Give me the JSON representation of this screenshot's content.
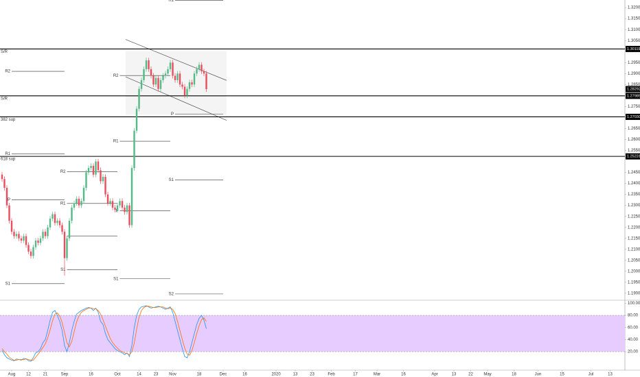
{
  "chart_data": {
    "type": "candlestick",
    "ylim": [
      1.18685,
      1.32347
    ],
    "xlim": [
      -0.857,
      259.14
    ],
    "yticks": [
      {
        "value": 1.19,
        "label": "1.19000"
      },
      {
        "value": 1.195,
        "label": "1.19500"
      },
      {
        "value": 1.2,
        "label": "1.20000"
      },
      {
        "value": 1.205,
        "label": "1.20500"
      },
      {
        "value": 1.21,
        "label": "1.21000"
      },
      {
        "value": 1.215,
        "label": "1.21500"
      },
      {
        "value": 1.22,
        "label": "1.22000"
      },
      {
        "value": 1.225,
        "label": "1.22500"
      },
      {
        "value": 1.23,
        "label": "1.23000"
      },
      {
        "value": 1.235,
        "label": "1.23500"
      },
      {
        "value": 1.24,
        "label": "1.24000"
      },
      {
        "value": 1.245,
        "label": "1.24500"
      },
      {
        "value": 1.255,
        "label": "1.25500"
      },
      {
        "value": 1.26,
        "label": "1.26000"
      },
      {
        "value": 1.265,
        "label": "1.26500"
      },
      {
        "value": 1.275,
        "label": "1.27500"
      },
      {
        "value": 1.285,
        "label": "1.28500"
      },
      {
        "value": 1.29,
        "label": "1.29000"
      },
      {
        "value": 1.295,
        "label": "1.29500"
      },
      {
        "value": 1.305,
        "label": "1.30500"
      },
      {
        "value": 1.31,
        "label": "1.31000"
      },
      {
        "value": 1.315,
        "label": "1.31500"
      },
      {
        "value": 1.32,
        "label": "1.32000"
      }
    ],
    "xticks": [
      {
        "value": 4,
        "label": "Aug"
      },
      {
        "value": 11,
        "label": "12"
      },
      {
        "value": 18,
        "label": "21"
      },
      {
        "value": 26,
        "label": "Sep"
      },
      {
        "value": 37,
        "label": "16"
      },
      {
        "value": 48,
        "label": "Oct"
      },
      {
        "value": 57,
        "label": "14"
      },
      {
        "value": 64,
        "label": "23"
      },
      {
        "value": 71,
        "label": "Nov"
      },
      {
        "value": 82,
        "label": "18"
      },
      {
        "value": 92,
        "label": "Dec"
      },
      {
        "value": 101,
        "label": "16"
      },
      {
        "value": 114,
        "label": "2020"
      },
      {
        "value": 122,
        "label": "13"
      },
      {
        "value": 129,
        "label": "23"
      },
      {
        "value": 137,
        "label": "Feb"
      },
      {
        "value": 147,
        "label": "17"
      },
      {
        "value": 156,
        "label": "Mar"
      },
      {
        "value": 167,
        "label": "16"
      },
      {
        "value": 180,
        "label": "Apr"
      },
      {
        "value": 188,
        "label": "13"
      },
      {
        "value": 195,
        "label": "22"
      },
      {
        "value": 202,
        "label": "May"
      },
      {
        "value": 213,
        "label": "18"
      },
      {
        "value": 223,
        "label": "Jun"
      },
      {
        "value": 233,
        "label": "15"
      },
      {
        "value": 245,
        "label": "Jul"
      },
      {
        "value": 253,
        "label": "13"
      }
    ],
    "colors": {
      "up": "#53b987",
      "down": "#eb4d5c"
    },
    "candles": {
      "open": [
        1.244,
        1.242,
        1.238,
        1.23,
        1.223,
        1.218,
        1.216,
        1.217,
        1.215,
        1.214,
        1.216,
        1.212,
        1.209,
        1.207,
        1.211,
        1.214,
        1.213,
        1.215,
        1.218,
        1.216,
        1.22,
        1.224,
        1.226,
        1.222,
        1.223,
        1.221,
        1.218,
        1.206,
        1.215,
        1.223,
        1.229,
        1.231,
        1.233,
        1.23,
        1.232,
        1.238,
        1.245,
        1.247,
        1.248,
        1.244,
        1.25,
        1.246,
        1.241,
        1.243,
        1.235,
        1.231,
        1.232,
        1.229,
        1.228,
        1.23,
        1.232,
        1.229,
        1.227,
        1.23,
        1.221,
        1.247,
        1.264,
        1.274,
        1.283,
        1.287,
        1.292,
        1.296,
        1.292,
        1.289,
        1.285,
        1.288,
        1.283,
        1.287,
        1.289,
        1.29,
        1.292,
        1.295,
        1.289,
        1.287,
        1.29,
        1.285,
        1.284,
        1.28,
        1.283,
        1.286,
        1.285,
        1.29,
        1.292,
        1.294,
        1.291,
        1.29
      ],
      "high": [
        1.2452,
        1.2432,
        1.2392,
        1.2312,
        1.2242,
        1.2192,
        1.2182,
        1.2182,
        1.2162,
        1.2172,
        1.2172,
        1.2132,
        1.2102,
        1.2122,
        1.2152,
        1.2152,
        1.2162,
        1.2192,
        1.2192,
        1.2212,
        1.2252,
        1.2272,
        1.2272,
        1.2242,
        1.2242,
        1.2222,
        1.2192,
        1.2162,
        1.2242,
        1.2302,
        1.2322,
        1.2342,
        1.2342,
        1.2332,
        1.2392,
        1.2462,
        1.2482,
        1.2492,
        1.2492,
        1.2512,
        1.2512,
        1.2472,
        1.2442,
        1.2442,
        1.2362,
        1.2332,
        1.2332,
        1.2302,
        1.2312,
        1.2332,
        1.2332,
        1.2302,
        1.2312,
        1.2312,
        1.2482,
        1.2652,
        1.2752,
        1.2842,
        1.2882,
        1.2932,
        1.2972,
        1.2972,
        1.2932,
        1.2902,
        1.2892,
        1.2892,
        1.2882,
        1.2902,
        1.2912,
        1.2932,
        1.2962,
        1.2962,
        1.2902,
        1.2912,
        1.2912,
        1.2862,
        1.2852,
        1.2842,
        1.2872,
        1.2872,
        1.2912,
        1.2932,
        1.2952,
        1.2952,
        1.2922,
        1.2912
      ],
      "low": [
        1.2408,
        1.2368,
        1.2288,
        1.2218,
        1.2168,
        1.2148,
        1.2148,
        1.2138,
        1.2128,
        1.2128,
        1.2108,
        1.2078,
        1.2058,
        1.2058,
        1.2098,
        1.2118,
        1.2118,
        1.2138,
        1.2148,
        1.2148,
        1.2188,
        1.2228,
        1.2208,
        1.2208,
        1.2198,
        1.2168,
        1.198,
        1.2048,
        1.2138,
        1.2218,
        1.2278,
        1.2298,
        1.2288,
        1.2288,
        1.2308,
        1.2368,
        1.2438,
        1.2458,
        1.2428,
        1.2428,
        1.2448,
        1.2398,
        1.2398,
        1.2338,
        1.2298,
        1.2298,
        1.2278,
        1.2268,
        1.2268,
        1.2288,
        1.2278,
        1.2258,
        1.2258,
        1.2198,
        1.2198,
        1.2458,
        1.2628,
        1.2728,
        1.2818,
        1.2858,
        1.2908,
        1.2908,
        1.2878,
        1.2838,
        1.2838,
        1.2818,
        1.2818,
        1.2858,
        1.2878,
        1.2888,
        1.2908,
        1.2878,
        1.2858,
        1.2858,
        1.2838,
        1.2828,
        1.2788,
        1.2788,
        1.2818,
        1.2838,
        1.2838,
        1.2888,
        1.2908,
        1.2898,
        1.2888,
        1.2817
      ],
      "close": [
        1.242,
        1.238,
        1.23,
        1.223,
        1.218,
        1.216,
        1.217,
        1.215,
        1.214,
        1.216,
        1.212,
        1.209,
        1.207,
        1.211,
        1.214,
        1.213,
        1.215,
        1.218,
        1.216,
        1.22,
        1.224,
        1.226,
        1.222,
        1.223,
        1.221,
        1.218,
        1.206,
        1.215,
        1.223,
        1.229,
        1.231,
        1.233,
        1.23,
        1.232,
        1.238,
        1.245,
        1.247,
        1.248,
        1.244,
        1.25,
        1.246,
        1.241,
        1.243,
        1.235,
        1.231,
        1.232,
        1.229,
        1.228,
        1.23,
        1.232,
        1.229,
        1.227,
        1.23,
        1.221,
        1.247,
        1.264,
        1.274,
        1.283,
        1.287,
        1.292,
        1.296,
        1.292,
        1.289,
        1.285,
        1.288,
        1.283,
        1.287,
        1.289,
        1.29,
        1.292,
        1.295,
        1.289,
        1.287,
        1.29,
        1.285,
        1.284,
        1.28,
        1.283,
        1.286,
        1.285,
        1.29,
        1.292,
        1.294,
        1.291,
        1.29,
        1.28292
      ]
    },
    "levels": [
      {
        "name": "S/R",
        "value": 1.30119,
        "price_label": "1.30119"
      },
      {
        "name": "S/R",
        "value": 1.27985,
        "price_label": "1.27985"
      },
      {
        "name": "382 sup",
        "value": 1.2703,
        "price_label": "1.27030"
      },
      {
        "name": "618 sup",
        "value": 1.25231,
        "price_label": "1.25231"
      }
    ],
    "last_price": {
      "value": 1.28292,
      "label": "1.28292"
    },
    "pivots": [
      {
        "label": "R2",
        "value": 1.291,
        "from": 4,
        "to": 26
      },
      {
        "label": "R1",
        "value": 1.2535,
        "from": 4,
        "to": 26
      },
      {
        "label": "P",
        "value": 1.2325,
        "from": 4,
        "to": 26
      },
      {
        "label": "S1",
        "value": 1.1944,
        "from": 4,
        "to": 26
      },
      {
        "label": "R2",
        "value": 1.2454,
        "from": 27,
        "to": 48
      },
      {
        "label": "R1",
        "value": 1.2309,
        "from": 27,
        "to": 48
      },
      {
        "label": null,
        "value": 1.2161,
        "from": 27,
        "to": 48
      },
      {
        "label": "S1",
        "value": 1.2007,
        "from": 27,
        "to": 48
      },
      {
        "label": "R2",
        "value": 1.2891,
        "from": 49,
        "to": 70
      },
      {
        "label": "R1",
        "value": 1.2592,
        "from": 49,
        "to": 70
      },
      {
        "label": "P",
        "value": 1.2275,
        "from": 49,
        "to": 70
      },
      {
        "label": "S1",
        "value": 1.1966,
        "from": 49,
        "to": 70
      },
      {
        "label": "R1",
        "value": 1.3233,
        "from": 72,
        "to": 92
      },
      {
        "label": "P",
        "value": 1.2715,
        "from": 72,
        "to": 92
      },
      {
        "label": "S1",
        "value": 1.2416,
        "from": 72,
        "to": 92
      },
      {
        "label": "S2",
        "value": 1.1897,
        "from": 72,
        "to": 92
      }
    ],
    "channel": {
      "upper": [
        [
          51.4,
          1.3055
        ],
        [
          93.4,
          1.2869
        ]
      ],
      "lower": [
        [
          51.4,
          1.2885
        ],
        [
          93.4,
          1.2687
        ]
      ],
      "box": [
        [
          51.4,
          1.3002
        ],
        [
          93.4,
          1.2712
        ]
      ]
    },
    "oscillator": {
      "type": "line",
      "ylim": [
        -10.5,
        105
      ],
      "yticks": [
        {
          "value": 100,
          "label": "100.00"
        },
        {
          "value": 80,
          "label": "80.00"
        },
        {
          "value": 60,
          "label": "60.00"
        },
        {
          "value": 40,
          "label": "40.00"
        },
        {
          "value": 20,
          "label": "20.00"
        }
      ],
      "band": [
        20,
        80
      ],
      "series": [
        {
          "color": "#2196f3",
          "values": [
            22,
            15,
            10,
            8,
            6,
            5,
            8,
            7,
            6,
            9,
            8,
            5,
            4,
            10,
            18,
            20,
            25,
            35,
            40,
            55,
            72,
            85,
            88,
            80,
            70,
            55,
            30,
            20,
            35,
            55,
            70,
            82,
            85,
            88,
            90,
            92,
            93,
            92,
            88,
            92,
            85,
            70,
            65,
            50,
            40,
            35,
            30,
            25,
            22,
            20,
            18,
            15,
            18,
            12,
            30,
            60,
            80,
            90,
            94,
            95,
            96,
            94,
            92,
            93,
            94,
            95,
            94,
            92,
            90,
            92,
            94,
            85,
            70,
            55,
            40,
            25,
            12,
            10,
            20,
            35,
            50,
            65,
            75,
            80,
            72,
            58
          ]
        },
        {
          "color": "#ff6d00",
          "values": [
            25,
            20,
            16,
            11,
            8,
            6,
            6,
            7,
            7,
            7,
            8,
            7,
            6,
            6,
            11,
            16,
            21,
            27,
            33,
            43,
            56,
            71,
            82,
            84,
            79,
            68,
            52,
            35,
            28,
            37,
            53,
            69,
            79,
            85,
            88,
            90,
            92,
            92,
            91,
            91,
            88,
            82,
            73,
            62,
            52,
            42,
            35,
            30,
            26,
            22,
            20,
            18,
            17,
            15,
            20,
            34,
            57,
            77,
            88,
            93,
            95,
            95,
            94,
            93,
            93,
            94,
            94,
            94,
            92,
            91,
            92,
            90,
            83,
            70,
            55,
            40,
            26,
            16,
            14,
            22,
            35,
            50,
            63,
            73,
            76,
            70
          ]
        }
      ]
    }
  }
}
